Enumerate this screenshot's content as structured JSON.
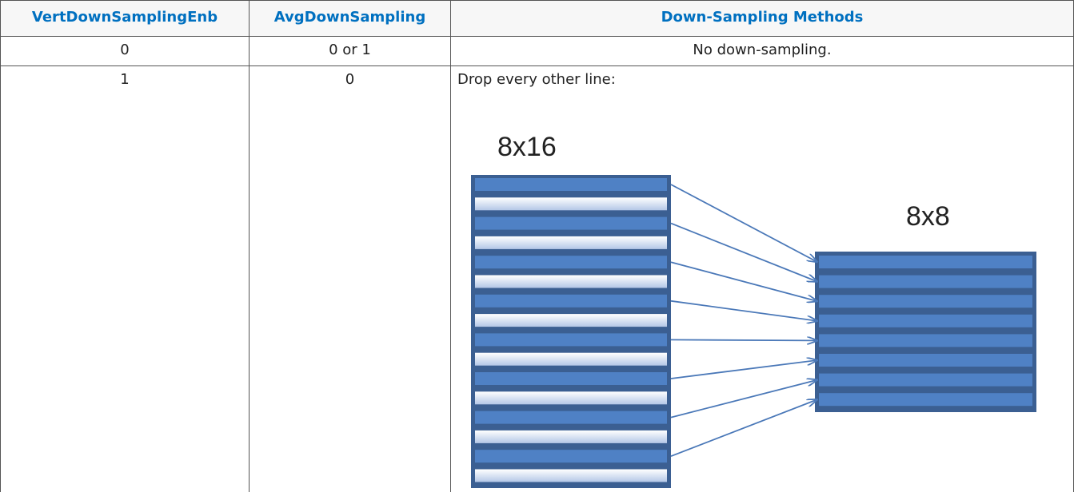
{
  "table": {
    "header": [
      "VertDownSamplingEnb",
      "AvgDownSampling",
      "Down-Sampling Methods"
    ],
    "rows": [
      [
        "0",
        "0 or 1",
        "No down-sampling."
      ],
      [
        "1",
        "0",
        "Drop every other line:"
      ]
    ]
  },
  "diagram": {
    "source_label": "8x16",
    "target_label": "8x8"
  }
}
